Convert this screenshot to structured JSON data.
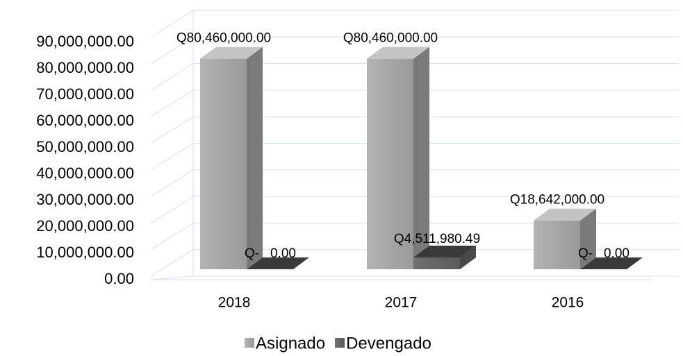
{
  "chart_data": {
    "type": "bar3d",
    "categories": [
      "2018",
      "2017",
      "2016"
    ],
    "series": [
      {
        "name": "Asignado",
        "color": "#a6a6a6",
        "values": [
          80460000,
          80460000,
          18642000
        ],
        "value_labels": [
          "Q80,460,000.00",
          "Q80,460,000.00",
          "Q18,642,000.00"
        ]
      },
      {
        "name": "Devengado",
        "color": "#5f5f5f",
        "values": [
          0,
          4511980.49,
          0
        ],
        "value_labels": [
          "Q-   0.00",
          "Q4,511,980.49",
          "Q-   0.00"
        ]
      }
    ],
    "ylim": [
      0,
      100000000
    ],
    "yticks": [
      {
        "value": 0,
        "label": "0.00"
      },
      {
        "value": 10000000,
        "label": "10,000,000.00"
      },
      {
        "value": 20000000,
        "label": "20,000,000.00"
      },
      {
        "value": 30000000,
        "label": "30,000,000.00"
      },
      {
        "value": 40000000,
        "label": "40,000,000.00"
      },
      {
        "value": 50000000,
        "label": "50,000,000.00"
      },
      {
        "value": 60000000,
        "label": "60,000,000.00"
      },
      {
        "value": 70000000,
        "label": "70,000,000.00"
      },
      {
        "value": 80000000,
        "label": "80,000,000.00"
      },
      {
        "value": 90000000,
        "label": "90,000,000.00"
      }
    ],
    "grid": true,
    "legend": "bottom"
  }
}
